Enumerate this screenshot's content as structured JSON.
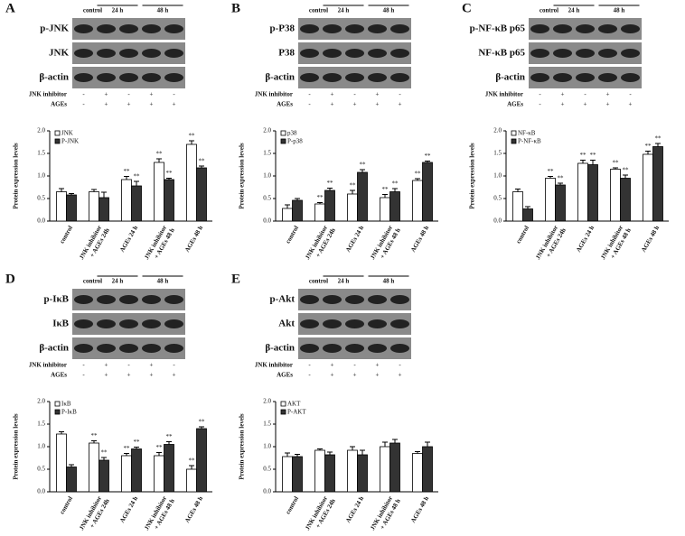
{
  "chart_data": [
    {
      "type": "bar",
      "panel": "A",
      "blot": {
        "groups": [
          "control",
          "24 h",
          "48 h"
        ],
        "rows": [
          "p-JNK",
          "JNK",
          "β-actin"
        ],
        "treatments": [
          {
            "name": "JNK inhibitor",
            "marks": [
              "-",
              "+",
              "-",
              "+",
              "-"
            ]
          },
          {
            "name": "AGEs",
            "marks": [
              "-",
              "+",
              "+",
              "+",
              "+"
            ]
          }
        ]
      },
      "y_label": "Protein expression levels",
      "categories": [
        "control",
        "JNK inhibitor + AGEs 24h",
        "AGEs 24 h",
        "JNK inhibitor + AGEs 48 h",
        "AGEs 48 h"
      ],
      "series": [
        {
          "name": "JNK",
          "color": "#ffffff",
          "values": [
            0.65,
            0.65,
            0.92,
            1.3,
            1.7
          ],
          "errors": [
            0.07,
            0.05,
            0.07,
            0.08,
            0.08
          ],
          "markers": [
            null,
            null,
            "**",
            "**",
            "**"
          ]
        },
        {
          "name": "P-JNK",
          "color": "#333333",
          "values": [
            0.58,
            0.52,
            0.78,
            0.92,
            1.18
          ],
          "errors": [
            0.03,
            0.12,
            0.1,
            0.03,
            0.04
          ],
          "markers": [
            null,
            null,
            "**",
            "**",
            "**"
          ]
        }
      ],
      "ylim": [
        0,
        2
      ],
      "yticks": [
        {
          "value": 0,
          "label": "0.0"
        },
        0.5,
        {
          "value": 1,
          "label": "1.0"
        },
        1.5,
        {
          "value": 2,
          "label": "2.0"
        }
      ]
    },
    {
      "type": "bar",
      "panel": "B",
      "blot": {
        "groups": [
          "control",
          "24 h",
          "48 h"
        ],
        "rows": [
          "p-P38",
          "P38",
          "β-actin"
        ],
        "treatments": [
          {
            "name": "JNK inhibitor",
            "marks": [
              "-",
              "+",
              "-",
              "+",
              "-"
            ]
          },
          {
            "name": "AGEs",
            "marks": [
              "-",
              "+",
              "+",
              "+",
              "+"
            ]
          }
        ]
      },
      "y_label": "Protein expression levels",
      "categories": [
        "control",
        "JNK inhibitor + AGEs 24h",
        "AGEs 24 h",
        "JNK inhibitor + AGEs 48 h",
        "AGEs 48 h"
      ],
      "series": [
        {
          "name": "p38",
          "color": "#ffffff",
          "values": [
            0.28,
            0.38,
            0.6,
            0.52,
            0.9
          ],
          "errors": [
            0.08,
            0.03,
            0.08,
            0.07,
            0.04
          ],
          "markers": [
            null,
            "**",
            "**",
            "**",
            "**"
          ]
        },
        {
          "name": "P-p38",
          "color": "#333333",
          "values": [
            0.46,
            0.68,
            1.08,
            0.65,
            1.3
          ],
          "errors": [
            0.04,
            0.05,
            0.06,
            0.07,
            0.03
          ],
          "markers": [
            null,
            "**",
            "**",
            "**",
            "**"
          ]
        }
      ],
      "ylim": [
        0,
        2
      ],
      "yticks": [
        {
          "value": 0,
          "label": "0.0"
        },
        0.5,
        {
          "value": 1,
          "label": "1.0"
        },
        1.5,
        {
          "value": 2,
          "label": "2.0"
        }
      ]
    },
    {
      "type": "bar",
      "panel": "C",
      "blot": {
        "groups": [
          "control",
          "24 h",
          "48 h"
        ],
        "rows": [
          "p-NF-κB p65",
          "NF-κB p65",
          "β-actin"
        ],
        "treatments": [
          {
            "name": "JNK inhibitor",
            "marks": [
              "-",
              "+",
              "-",
              "+",
              "-"
            ]
          },
          {
            "name": "AGEs",
            "marks": [
              "-",
              "+",
              "+",
              "+",
              "+"
            ]
          }
        ]
      },
      "y_label": "Protein expression levels",
      "categories": [
        "control",
        "JNK inhibitor + AGEs 24h",
        "AGEs 24 h",
        "JNK inhibitor + AGEs 48 h",
        "AGEs 48 h"
      ],
      "series": [
        {
          "name": "NF-κB",
          "color": "#ffffff",
          "values": [
            0.65,
            0.95,
            1.28,
            1.15,
            1.48
          ],
          "errors": [
            0.06,
            0.04,
            0.07,
            0.03,
            0.07
          ],
          "markers": [
            null,
            "**",
            "**",
            "**",
            "**"
          ]
        },
        {
          "name": "P-NF-κB",
          "color": "#333333",
          "values": [
            0.27,
            0.8,
            1.25,
            0.95,
            1.65
          ],
          "errors": [
            0.05,
            0.04,
            0.1,
            0.07,
            0.07
          ],
          "markers": [
            null,
            "**",
            "**",
            "**",
            "**"
          ]
        }
      ],
      "ylim": [
        0,
        2
      ],
      "yticks": [
        {
          "value": 0,
          "label": "0.0"
        },
        0.5,
        {
          "value": 1,
          "label": "1.0"
        },
        1.5,
        {
          "value": 2,
          "label": "2.0"
        }
      ]
    },
    {
      "type": "bar",
      "panel": "D",
      "blot": {
        "groups": [
          "control",
          "24 h",
          "48 h"
        ],
        "rows": [
          "p-IκB",
          "IκB",
          "β-actin"
        ],
        "treatments": [
          {
            "name": "JNK inhibitor",
            "marks": [
              "-",
              "+",
              "-",
              "+",
              "-"
            ]
          },
          {
            "name": "AGEs",
            "marks": [
              "-",
              "+",
              "+",
              "+",
              "+"
            ]
          }
        ]
      },
      "y_label": "Protein expression levels",
      "categories": [
        "control",
        "JNK inhibitor + AGEs 24h",
        "AGEs 24 h",
        "JNK inhibitor + AGEs 48 h",
        "AGEs 48 h"
      ],
      "series": [
        {
          "name": "IκB",
          "color": "#ffffff",
          "values": [
            1.28,
            1.08,
            0.8,
            0.8,
            0.5
          ],
          "errors": [
            0.05,
            0.05,
            0.05,
            0.07,
            0.08
          ],
          "markers": [
            null,
            "**",
            "**",
            "**",
            "**"
          ]
        },
        {
          "name": "P-IκB",
          "color": "#333333",
          "values": [
            0.55,
            0.7,
            0.95,
            1.05,
            1.4
          ],
          "errors": [
            0.05,
            0.06,
            0.04,
            0.06,
            0.04
          ],
          "markers": [
            null,
            "**",
            "**",
            "**",
            "**"
          ]
        }
      ],
      "ylim": [
        0,
        2
      ],
      "yticks": [
        {
          "value": 0,
          "label": "0.0"
        },
        0.5,
        {
          "value": 1,
          "label": "1.0"
        },
        1.5,
        {
          "value": 2,
          "label": "2.0"
        }
      ]
    },
    {
      "type": "bar",
      "panel": "E",
      "blot": {
        "groups": [
          "control",
          "24 h",
          "48 h"
        ],
        "rows": [
          "p-Akt",
          "Akt",
          "β-actin"
        ],
        "treatments": [
          {
            "name": "JNK inhibitor",
            "marks": [
              "-",
              "+",
              "-",
              "+",
              "-"
            ]
          },
          {
            "name": "AGEs",
            "marks": [
              "-",
              "+",
              "+",
              "+",
              "+"
            ]
          }
        ]
      },
      "y_label": "Protein expression levels",
      "categories": [
        "control",
        "JNK inhibitor + AGEs 24h",
        "AGEs 24 h",
        "JNK inhibitor + AGEs 48 h",
        "AGEs 48 h"
      ],
      "series": [
        {
          "name": "AKT",
          "color": "#ffffff",
          "values": [
            0.78,
            0.92,
            0.92,
            1.0,
            0.85
          ],
          "errors": [
            0.08,
            0.03,
            0.08,
            0.1,
            0.04
          ]
        },
        {
          "name": "P-AKT",
          "color": "#333333",
          "values": [
            0.78,
            0.82,
            0.82,
            1.08,
            1.0
          ],
          "errors": [
            0.05,
            0.06,
            0.1,
            0.08,
            0.1
          ]
        }
      ],
      "ylim": [
        0,
        2
      ],
      "yticks": [
        {
          "value": 0,
          "label": "0.0"
        },
        0.5,
        {
          "value": 1,
          "label": "1.0"
        },
        1.5,
        {
          "value": 2,
          "label": "2.0"
        }
      ]
    }
  ]
}
